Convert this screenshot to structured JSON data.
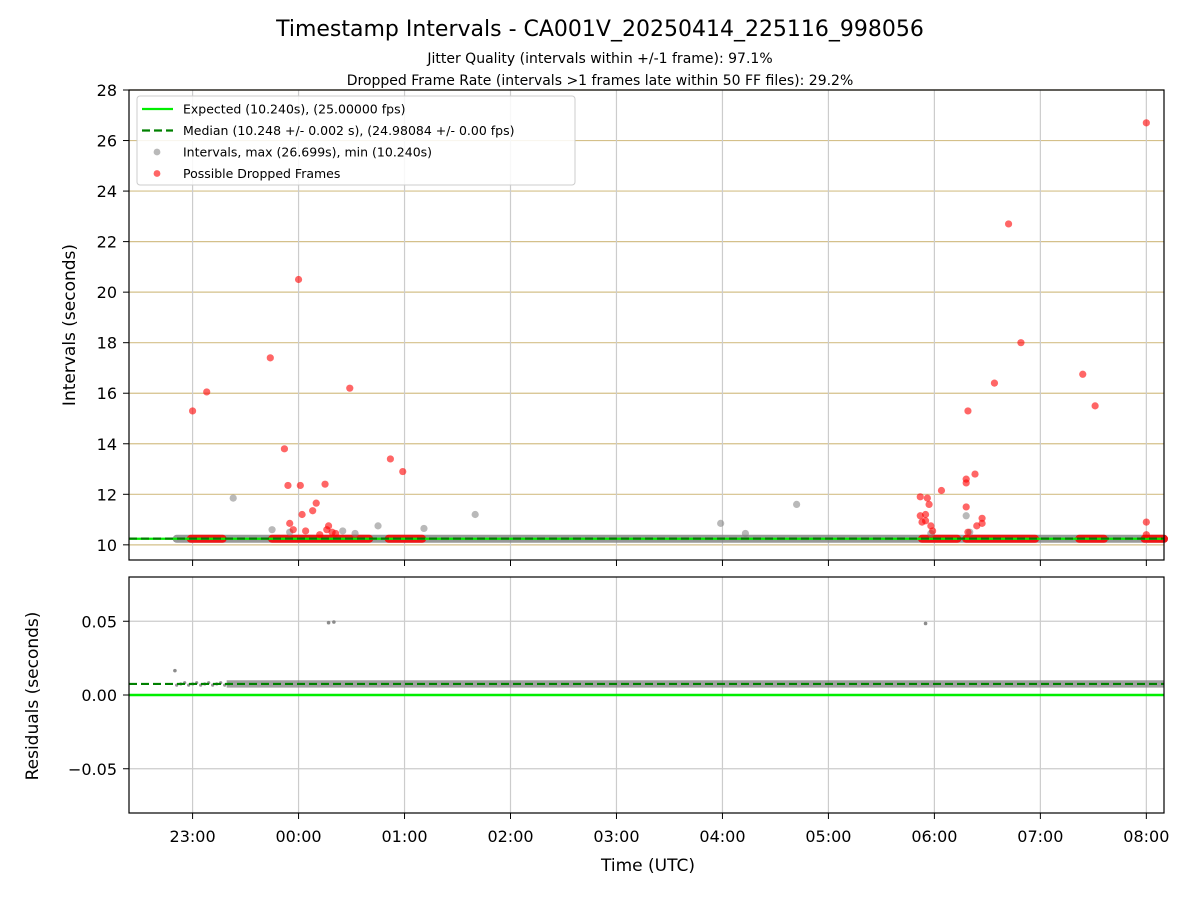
{
  "figure": {
    "title": "Timestamp Intervals - CA001V_20250414_225116_998056",
    "subtitle_1": "Jitter Quality (intervals within +/-1 frame): 97.1%",
    "subtitle_2": "Dropped Frame Rate (intervals >1 frames late within 50 FF files): 29.2%",
    "xlabel": "Time (UTC)"
  },
  "colors": {
    "expected": "#00ee00",
    "median": "#008000",
    "intervals": "#808080",
    "dropped": "#ff0000",
    "grid_top": "#d4c08a",
    "grid": "#cccccc"
  },
  "chart_data": [
    {
      "type": "scatter",
      "ylabel": "Intervals (seconds)",
      "ylim": [
        9.4,
        28
      ],
      "yticks": [
        "10",
        "12",
        "14",
        "16",
        "18",
        "20",
        "22",
        "24",
        "26",
        "28"
      ],
      "xlim": [
        "22:24",
        "08:10"
      ],
      "xticks": [
        "23:00",
        "00:00",
        "01:00",
        "02:00",
        "03:00",
        "04:00",
        "05:00",
        "06:00",
        "07:00",
        "08:00"
      ],
      "grid": "on",
      "legend_position": "top-left",
      "legend": [
        "Expected (10.240s), (25.00000 fps)",
        "Median (10.248 +/- 0.002 s), (24.98084 +/- 0.00 fps)",
        "Intervals, max (26.699s), min (10.240s)",
        "Possible Dropped Frames"
      ],
      "expected_interval": 10.24,
      "median_interval": 10.248,
      "baseline_run": {
        "x": [
          "22:51",
          "08:10"
        ],
        "y": 10.24
      },
      "dropped_runs": [
        {
          "x": [
            "22:59",
            "23:17"
          ],
          "y": 10.24
        },
        {
          "x": [
            "23:45",
            "00:40"
          ],
          "y": 10.24
        },
        {
          "x": [
            "00:51",
            "01:10"
          ],
          "y": 10.24
        },
        {
          "x": [
            "05:53",
            "06:13"
          ],
          "y": 10.24
        },
        {
          "x": [
            "06:18",
            "06:57"
          ],
          "y": 10.24
        },
        {
          "x": [
            "07:22",
            "07:36"
          ],
          "y": 10.24
        },
        {
          "x": [
            "07:59",
            "08:10"
          ],
          "y": 10.24
        }
      ],
      "series": [
        {
          "name": "Intervals, max (26.699s), min (10.240s)",
          "points": [
            [
              "23:23",
              11.85
            ],
            [
              "23:45",
              10.6
            ],
            [
              "00:25",
              10.55
            ],
            [
              "00:45",
              10.75
            ],
            [
              "01:11",
              10.65
            ],
            [
              "01:40",
              11.2
            ],
            [
              "03:59",
              10.85
            ],
            [
              "04:13",
              10.45
            ],
            [
              "04:42",
              11.6
            ],
            [
              "06:18",
              11.15
            ],
            [
              "06:20",
              10.5
            ],
            [
              "05:58",
              10.45
            ],
            [
              "23:55",
              10.5
            ],
            [
              "00:32",
              10.45
            ]
          ]
        },
        {
          "name": "Possible Dropped Frames",
          "points": [
            [
              "23:00",
              15.3
            ],
            [
              "23:08",
              16.05
            ],
            [
              "23:44",
              17.4
            ],
            [
              "23:52",
              13.8
            ],
            [
              "23:54",
              12.35
            ],
            [
              "23:55",
              10.85
            ],
            [
              "00:00",
              20.5
            ],
            [
              "00:01",
              12.35
            ],
            [
              "00:02",
              11.2
            ],
            [
              "00:08",
              11.35
            ],
            [
              "00:10",
              11.65
            ],
            [
              "00:15",
              12.4
            ],
            [
              "00:16",
              10.6
            ],
            [
              "00:17",
              10.75
            ],
            [
              "00:19",
              10.5
            ],
            [
              "00:29",
              16.2
            ],
            [
              "00:52",
              13.4
            ],
            [
              "00:59",
              12.9
            ],
            [
              "23:57",
              10.6
            ],
            [
              "00:04",
              10.55
            ],
            [
              "00:12",
              10.4
            ],
            [
              "00:21",
              10.45
            ],
            [
              "05:52",
              11.9
            ],
            [
              "05:52",
              11.15
            ],
            [
              "05:53",
              10.9
            ],
            [
              "05:55",
              11.2
            ],
            [
              "05:55",
              10.95
            ],
            [
              "05:56",
              11.85
            ],
            [
              "05:57",
              11.6
            ],
            [
              "05:58",
              10.75
            ],
            [
              "05:59",
              10.55
            ],
            [
              "06:04",
              12.15
            ],
            [
              "06:18",
              12.6
            ],
            [
              "06:18",
              12.45
            ],
            [
              "06:19",
              15.3
            ],
            [
              "06:18",
              11.5
            ],
            [
              "06:19",
              10.5
            ],
            [
              "06:23",
              12.8
            ],
            [
              "06:24",
              10.75
            ],
            [
              "06:27",
              11.05
            ],
            [
              "06:27",
              10.85
            ],
            [
              "06:34",
              16.4
            ],
            [
              "06:42",
              22.7
            ],
            [
              "06:49",
              18.0
            ],
            [
              "07:24",
              16.75
            ],
            [
              "07:31",
              15.5
            ],
            [
              "08:00",
              26.7
            ],
            [
              "08:00",
              10.9
            ],
            [
              "08:00",
              10.4
            ]
          ]
        }
      ]
    },
    {
      "type": "scatter",
      "ylabel": "Residuals (seconds)",
      "ylim": [
        -0.08,
        0.08
      ],
      "yticks": [
        "0.05",
        "0.00",
        "−0.05"
      ],
      "yticks_values": [
        0.05,
        0.0,
        -0.05
      ],
      "xlim": [
        "22:24",
        "08:10"
      ],
      "grid": "on",
      "expected_residual": 0.0,
      "median_residual": 0.0075,
      "residual_band": {
        "x": [
          "22:51",
          "08:10"
        ],
        "center": 0.0075,
        "spread": 0.0025
      },
      "outliers": [
        [
          "22:50",
          0.0165
        ],
        [
          "00:17",
          0.049
        ],
        [
          "00:20",
          0.0495
        ],
        [
          "05:55",
          0.0485
        ]
      ]
    }
  ]
}
